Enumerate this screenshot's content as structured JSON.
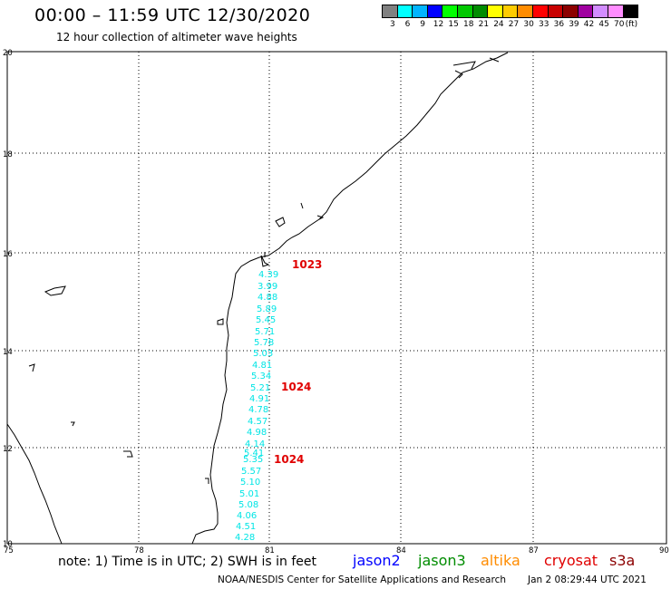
{
  "title": "00:00 – 11:59 UTC 12/30/2020",
  "subtitle": "12 hour collection of altimeter wave heights",
  "colorbar": {
    "colors": [
      "#808080",
      "#00ffff",
      "#00b4ff",
      "#0000ff",
      "#00ff00",
      "#00c800",
      "#008c00",
      "#ffff00",
      "#ffcc00",
      "#ff8c00",
      "#ff0000",
      "#c80000",
      "#8c0000",
      "#a000a0",
      "#d28cff",
      "#ff8cff",
      "#000000"
    ],
    "labels": [
      "3",
      "6",
      "9",
      "12",
      "15",
      "18",
      "21",
      "24",
      "27",
      "30",
      "33",
      "36",
      "39",
      "42",
      "45",
      "70"
    ],
    "unit": "(ft)"
  },
  "map": {
    "lat_labels": [
      "20",
      "18",
      "16",
      "14",
      "12",
      "10"
    ],
    "lon_labels": [
      "75",
      "78",
      "81",
      "84",
      "87",
      "90"
    ]
  },
  "pressure_labels": [
    "1023",
    "1024",
    "1024"
  ],
  "swh_values": [
    "4.39",
    "3.99",
    "4.88",
    "5.89",
    "5.45",
    "5.71",
    "5.78",
    "5.03",
    "4.81",
    "5.34",
    "5.21",
    "4.91",
    "4.78",
    "4.57",
    "4.98",
    "4.14",
    "5.41",
    "5.35",
    "5.57",
    "5.10",
    "5.01",
    "5.08",
    "4.06",
    "4.51",
    "4.28"
  ],
  "footer": {
    "note": "note:  1) Time is in UTC;  2) SWH is in feet",
    "satellites": [
      {
        "name": "jason2",
        "color": "#0000ff"
      },
      {
        "name": "jason3",
        "color": "#008c00"
      },
      {
        "name": "altika",
        "color": "#ff8c00"
      },
      {
        "name": "cryosat",
        "color": "#e00000"
      },
      {
        "name": "s3a",
        "color": "#8c0000"
      }
    ],
    "credit": "NOAA/NESDIS Center for Satellite Applications and Research",
    "timestamp": "Jan  2 08:29:44 UTC 2021"
  }
}
